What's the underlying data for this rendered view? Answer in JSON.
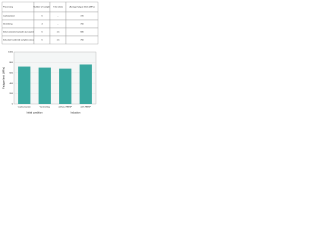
{
  "table": {
    "header": [
      "Processing",
      "Number of samples",
      "Time (min)",
      "Average fatigue limits (MPa)"
    ],
    "rows": [
      [
        "Carburization",
        "6",
        "-",
        "720"
      ],
      [
        "Varnishing",
        "4",
        "-",
        "700"
      ],
      [
        "Initial annealed samples (uncoated)",
        "6",
        "1.5",
        "680"
      ],
      [
        "Induction hardened samples (uncoated)",
        "6",
        "1.5",
        "760"
      ]
    ]
  },
  "chart_data": {
    "type": "bar",
    "y_label": "Fatigue limit (MPa)",
    "categories": [
      "Carburization",
      "Varnishing",
      "without HBSP",
      "with HBSP"
    ],
    "groups": [
      "Initial condition",
      "Induction"
    ],
    "values": [
      720,
      700,
      680,
      760
    ],
    "color": "#3aa8a0",
    "ylim": [
      0,
      1000
    ],
    "yticks": [
      0,
      200,
      400,
      600,
      800,
      1000
    ],
    "grid": true
  }
}
